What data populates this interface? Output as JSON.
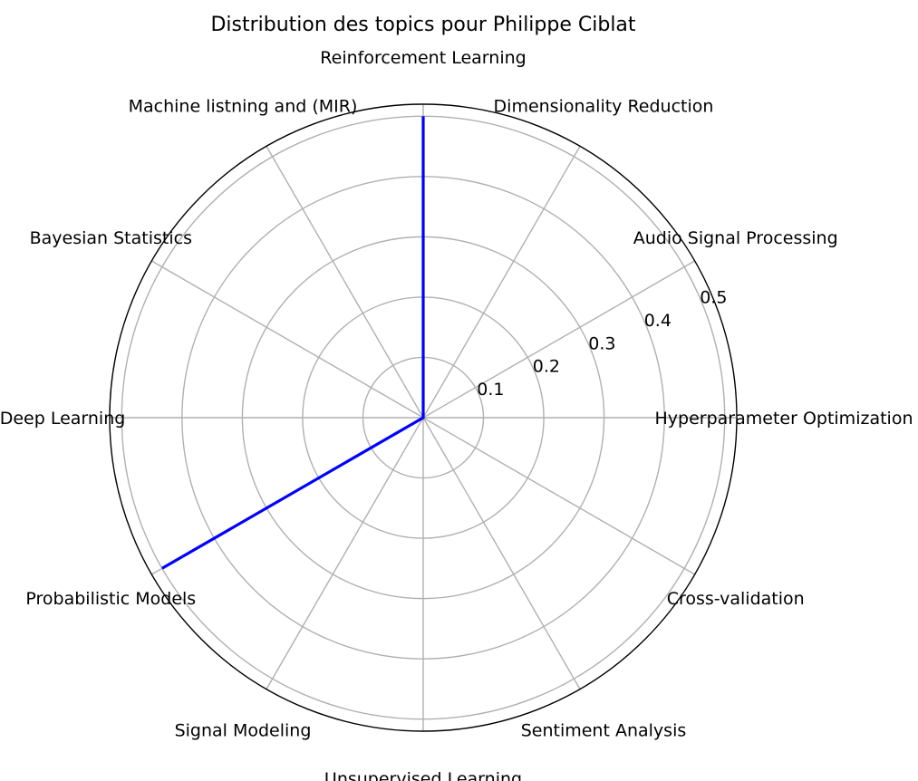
{
  "chart_data": {
    "type": "radar",
    "title": "Distribution des topics pour Philippe Ciblat",
    "categories": [
      "Hyperparameter Optimization",
      "Audio Signal Processing",
      "Dimensionality Reduction",
      "Reinforcement Learning",
      "Machine listning and (MIR)",
      "Bayesian Statistics",
      "Deep Learning",
      "Probabilistic Models",
      "Signal Modeling",
      "Unsupervised Learning",
      "Sentiment Analysis",
      "Cross-validation"
    ],
    "series": [
      {
        "values": [
          0,
          0,
          0,
          0.5,
          0,
          0,
          0,
          0.5,
          0,
          0,
          0,
          0
        ],
        "color": "#0000ff"
      }
    ],
    "rlim": [
      0,
      0.52
    ],
    "rticks": [
      0.1,
      0.2,
      0.3,
      0.4,
      0.5
    ],
    "rtick_labels": [
      "0.1",
      "0.2",
      "0.3",
      "0.4",
      "0.5"
    ],
    "grid": true
  }
}
